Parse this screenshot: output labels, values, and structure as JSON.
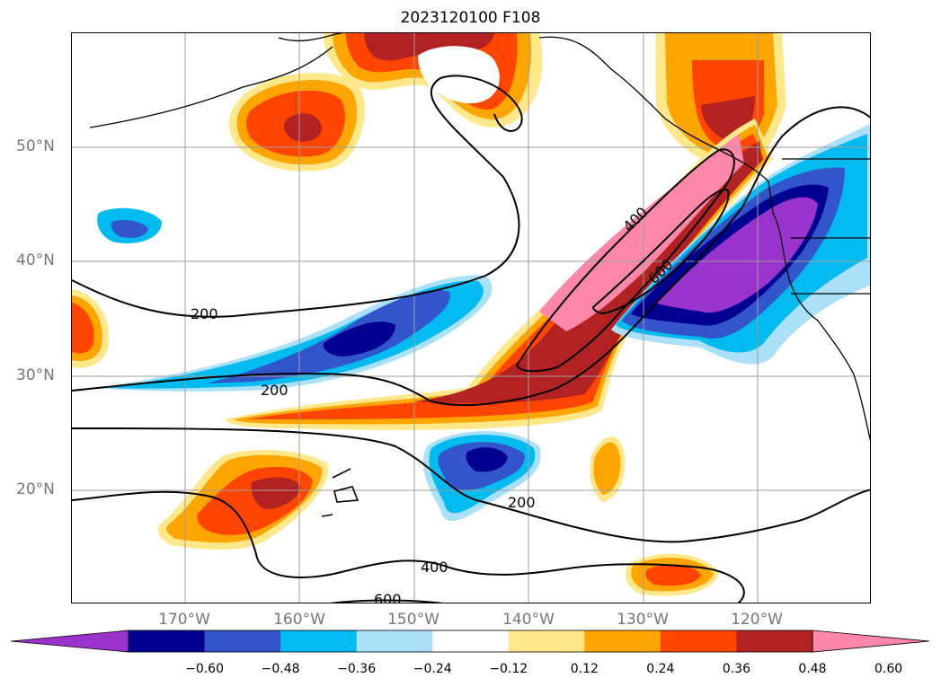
{
  "title": "2023120100 F108",
  "axes": {
    "lat_labels": [
      "50°N",
      "40°N",
      "30°N",
      "20°N"
    ],
    "lon_labels": [
      "170°W",
      "160°W",
      "150°W",
      "140°W",
      "130°W",
      "120°W"
    ]
  },
  "contour_labels": [
    "200",
    "200",
    "200",
    "400",
    "400",
    "600",
    "600"
  ],
  "colorbar": {
    "ticks": [
      "−0.60",
      "−0.48",
      "−0.36",
      "−0.24",
      "−0.12",
      "0.12",
      "0.24",
      "0.36",
      "0.48",
      "0.60"
    ],
    "colors": [
      "#9933cc",
      "#000090",
      "#3355cc",
      "#00bbf0",
      "#aae0f8",
      "#ffffff",
      "#ffe88a",
      "#ffa500",
      "#ff4500",
      "#b22222",
      "#ff88aa"
    ]
  }
}
